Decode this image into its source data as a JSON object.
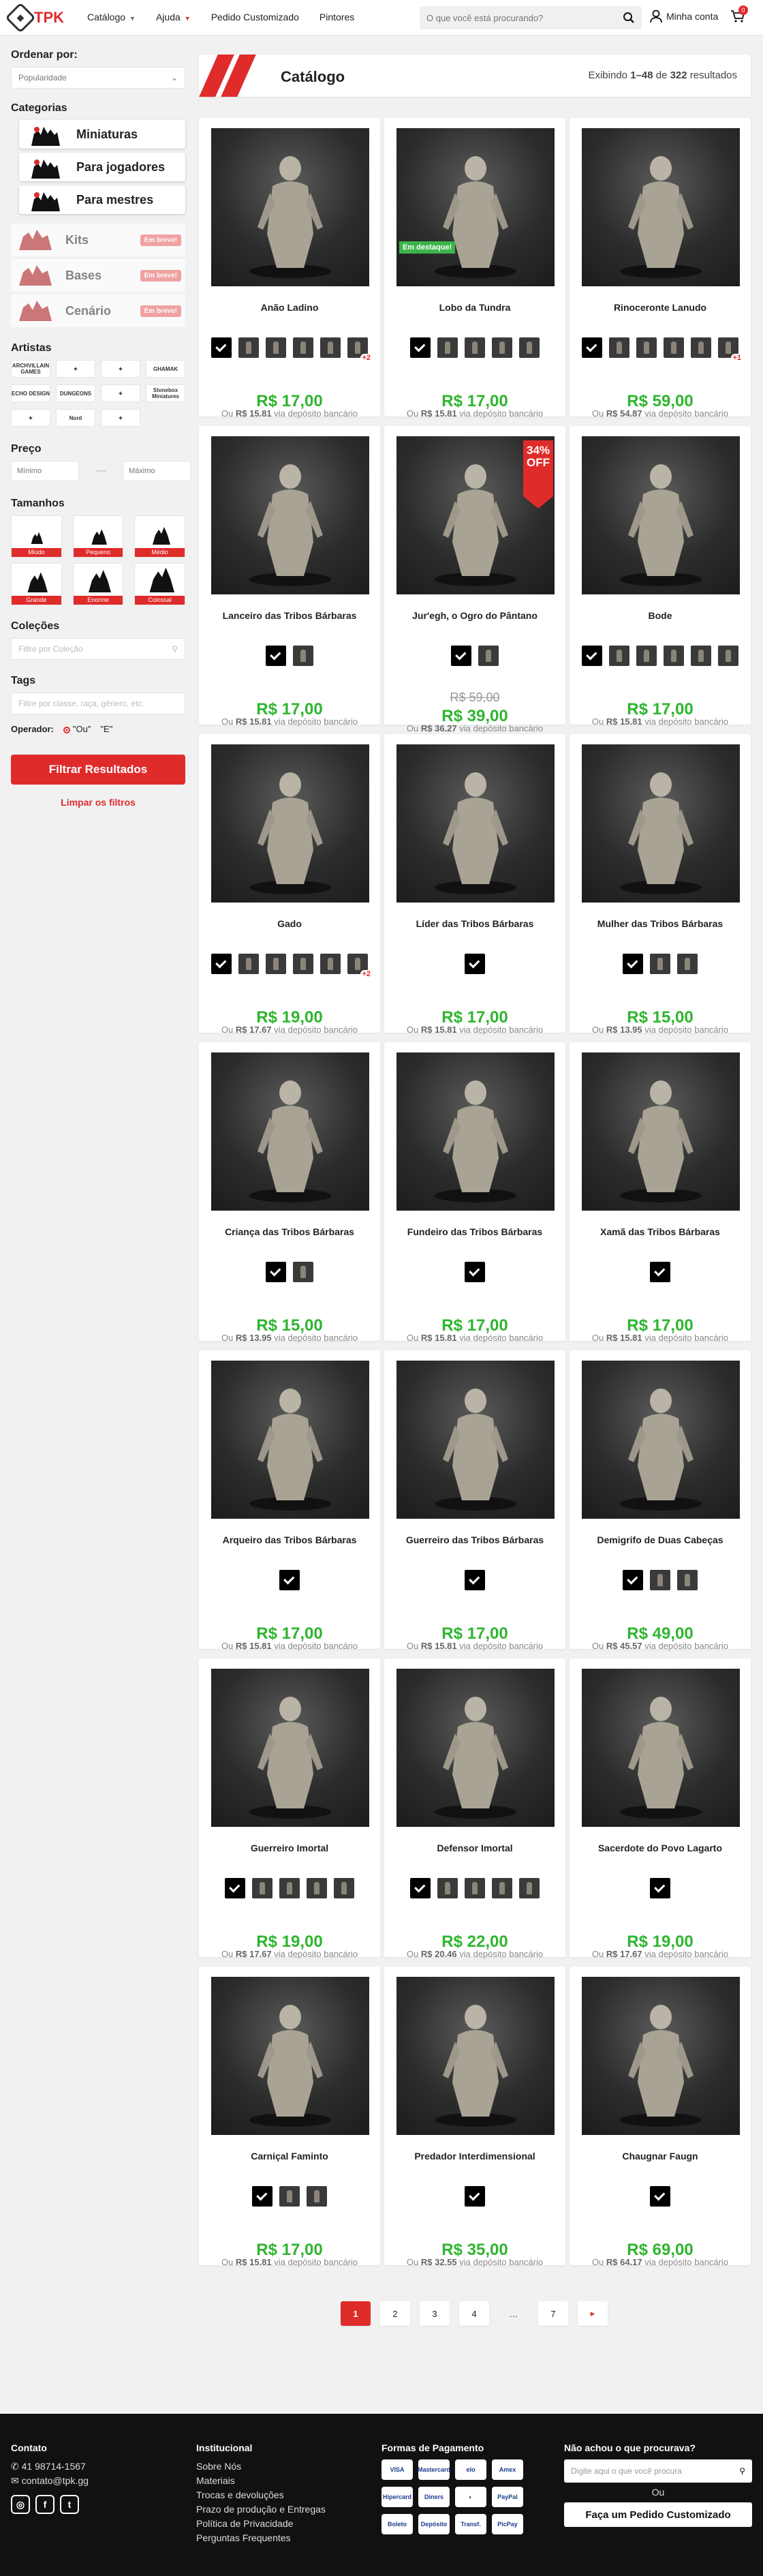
{
  "header": {
    "logo_text": "TPK",
    "nav": [
      {
        "label": "Catálogo",
        "caret": "gray"
      },
      {
        "label": "Ajuda",
        "caret": "red"
      },
      {
        "label": "Pedido Customizado",
        "caret": ""
      },
      {
        "label": "Pintores",
        "caret": ""
      }
    ],
    "search_placeholder": "O que você está procurando?",
    "account_label": "Minha conta",
    "cart_count": "0"
  },
  "sidebar": {
    "sort_label": "Ordenar por:",
    "sort_value": "Popularidade",
    "categories_label": "Categorias",
    "categories": [
      "Miniaturas",
      "Para jogadores",
      "Para mestres"
    ],
    "coming": [
      {
        "label": "Kits",
        "badge": "Em breve!"
      },
      {
        "label": "Bases",
        "badge": "Em breve!"
      },
      {
        "label": "Cenário",
        "badge": "Em breve!"
      }
    ],
    "artists_label": "Artistas",
    "artists": [
      "ARCHVILLAIN GAMES",
      "",
      "",
      "GHAMAK",
      "ECHO DESIGN",
      "DUNGEONS",
      "",
      "Stonebox Miniatures",
      "",
      "Nord",
      ""
    ],
    "price_label": "Preço",
    "price_min": "Mínimo",
    "price_max": "Máximo",
    "sizes_label": "Tamanhos",
    "sizes": [
      "Miúdo",
      "Pequeno",
      "Médio",
      "Grande",
      "Enorme",
      "Colossal"
    ],
    "collections_label": "Coleções",
    "collections_placeholder": "Filtre por Coleção",
    "tags_label": "Tags",
    "tags_placeholder": "Filtre por classe, raça, gênero, etc.",
    "operator_label": "Operador:",
    "op_or": "\"Ou\"",
    "op_and": "\"E\"",
    "filter_button": "Filtrar Resultados",
    "clear_link": "Limpar os filtros"
  },
  "catalog": {
    "title": "Catálogo",
    "count_prefix": "Exibindo ",
    "count_range": "1–48",
    "count_mid": " de ",
    "count_total": "322",
    "count_suffix": " resultados",
    "bank_prefix": "Ou ",
    "bank_suffix": " via depósito bancário"
  },
  "products": [
    {
      "name": "Anão Ladino",
      "price": "R$ 17,00",
      "bank": "R$ 15.81",
      "thumbs": 6,
      "more": "+2"
    },
    {
      "name": "Lobo da Tundra",
      "price": "R$ 17,00",
      "bank": "R$ 15.81",
      "thumbs": 5,
      "tag": "Em destaque!"
    },
    {
      "name": "Rinoceronte Lanudo",
      "price": "R$ 59,00",
      "bank": "R$ 54.87",
      "thumbs": 6,
      "more": "+1"
    },
    {
      "name": "Lanceiro das Tribos Bárbaras",
      "price": "R$ 17,00",
      "bank": "R$ 15.81",
      "thumbs": 2
    },
    {
      "name": "Jur'egh, o Ogro do Pântano",
      "price": "R$ 39,00",
      "old": "R$ 59,00",
      "bank": "R$ 36.27",
      "thumbs": 2,
      "off": "34%",
      "off_label": "OFF"
    },
    {
      "name": "Bode",
      "price": "R$ 17,00",
      "bank": "R$ 15.81",
      "thumbs": 6
    },
    {
      "name": "Gado",
      "price": "R$ 19,00",
      "bank": "R$ 17.67",
      "thumbs": 6,
      "more": "+2"
    },
    {
      "name": "Líder das Tribos Bárbaras",
      "price": "R$ 17,00",
      "bank": "R$ 15.81",
      "thumbs": 1
    },
    {
      "name": "Mulher das Tribos Bárbaras",
      "price": "R$ 15,00",
      "bank": "R$ 13.95",
      "thumbs": 3
    },
    {
      "name": "Criança das Tribos Bárbaras",
      "price": "R$ 15,00",
      "bank": "R$ 13.95",
      "thumbs": 2
    },
    {
      "name": "Fundeiro das Tribos Bárbaras",
      "price": "R$ 17,00",
      "bank": "R$ 15.81",
      "thumbs": 1
    },
    {
      "name": "Xamã das Tribos Bárbaras",
      "price": "R$ 17,00",
      "bank": "R$ 15.81",
      "thumbs": 1
    },
    {
      "name": "Arqueiro das Tribos Bárbaras",
      "price": "R$ 17,00",
      "bank": "R$ 15.81",
      "thumbs": 1
    },
    {
      "name": "Guerreiro das Tribos Bárbaras",
      "price": "R$ 17,00",
      "bank": "R$ 15.81",
      "thumbs": 1
    },
    {
      "name": "Demigrifo de Duas Cabeças",
      "price": "R$ 49,00",
      "bank": "R$ 45.57",
      "thumbs": 3
    },
    {
      "name": "Guerreiro Imortal",
      "price": "R$ 19,00",
      "bank": "R$ 17.67",
      "thumbs": 5
    },
    {
      "name": "Defensor Imortal",
      "price": "R$ 22,00",
      "bank": "R$ 20.46",
      "thumbs": 5
    },
    {
      "name": "Sacerdote do Povo Lagarto",
      "price": "R$ 19,00",
      "bank": "R$ 17.67",
      "thumbs": 1
    },
    {
      "name": "Carniçal Faminto",
      "price": "R$ 17,00",
      "bank": "R$ 15.81",
      "thumbs": 3
    },
    {
      "name": "Predador Interdimensional",
      "price": "R$ 35,00",
      "bank": "R$ 32.55",
      "thumbs": 1
    },
    {
      "name": "Chaugnar Faugn",
      "price": "R$ 69,00",
      "bank": "R$ 64.17",
      "thumbs": 1
    }
  ],
  "pagination": [
    "1",
    "2",
    "3",
    "4",
    "…",
    "7",
    "▸"
  ],
  "footer": {
    "contact_title": "Contato",
    "phone": "41 98714-1567",
    "email": "contato@tpk.gg",
    "inst_title": "Institucional",
    "inst_links": [
      "Sobre Nós",
      "Materiais",
      "Trocas e devoluções",
      "Prazo de produção e Entregas",
      "Política de Privacidade",
      "Perguntas Frequentes"
    ],
    "pay_title": "Formas de Pagamento",
    "pay_methods": [
      "VISA",
      "Mastercard",
      "elo",
      "Amex",
      "Hipercard",
      "Diners",
      "",
      "PayPal",
      "Boleto",
      "Depósito",
      "Transf.",
      "PicPay"
    ],
    "help_title": "Não achou o que procurava?",
    "help_placeholder": "Digite aqui o que você procura",
    "or_label": "Ou",
    "custom_button": "Faça um Pedido Customizado"
  }
}
